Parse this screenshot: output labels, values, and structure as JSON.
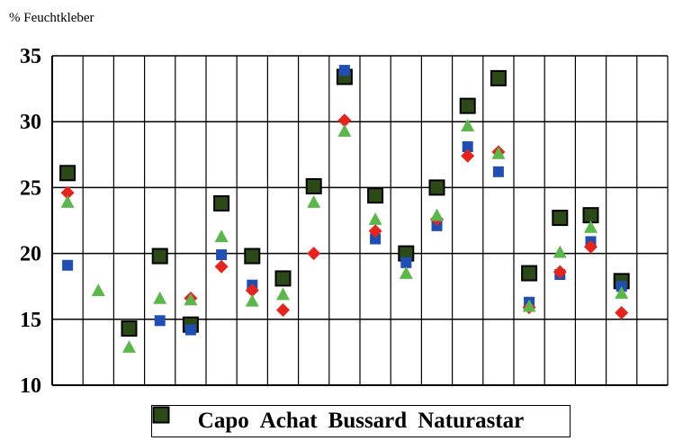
{
  "chart_data": {
    "type": "scatter",
    "ylabel": "% Feuchtkleber",
    "ylim": [
      10,
      35
    ],
    "yticks": [
      "10",
      "15",
      "20",
      "25",
      "30",
      "35"
    ],
    "x": [
      1,
      2,
      3,
      4,
      5,
      6,
      7,
      8,
      9,
      10,
      11,
      12,
      13,
      14,
      15,
      16,
      17,
      18,
      19,
      20
    ],
    "grid": "vertical lines between categories and horizontal lines at each y tick",
    "legend_position": "bottom",
    "series": [
      {
        "name": "Capo",
        "marker": "square",
        "color": "#1f4fb4",
        "values": [
          19.1,
          null,
          null,
          14.9,
          14.2,
          19.9,
          17.6,
          null,
          null,
          33.9,
          21.1,
          19.3,
          22.1,
          28.1,
          26.2,
          16.3,
          18.4,
          20.9,
          17.5,
          null
        ]
      },
      {
        "name": "Achat",
        "marker": "diamond",
        "color": "#e8231c",
        "values": [
          24.6,
          null,
          null,
          null,
          16.6,
          19.0,
          17.2,
          15.7,
          20.0,
          30.1,
          21.7,
          null,
          22.6,
          27.4,
          27.7,
          15.9,
          18.6,
          20.5,
          15.5,
          null
        ]
      },
      {
        "name": "Bussard",
        "marker": "triangle",
        "color": "#5ab84a",
        "values": [
          23.9,
          17.2,
          12.9,
          16.6,
          16.5,
          21.3,
          16.4,
          16.9,
          23.9,
          29.3,
          22.6,
          18.5,
          22.9,
          29.7,
          27.6,
          16.0,
          20.1,
          22.0,
          17.0,
          null
        ]
      },
      {
        "name": "Naturastar",
        "marker": "square-outlined",
        "color": "#2c4a18",
        "values": [
          26.1,
          null,
          14.3,
          19.8,
          14.6,
          23.8,
          19.8,
          18.1,
          25.1,
          33.4,
          24.4,
          20.0,
          25.0,
          31.2,
          33.3,
          18.5,
          22.7,
          22.9,
          17.9,
          null
        ]
      }
    ]
  }
}
